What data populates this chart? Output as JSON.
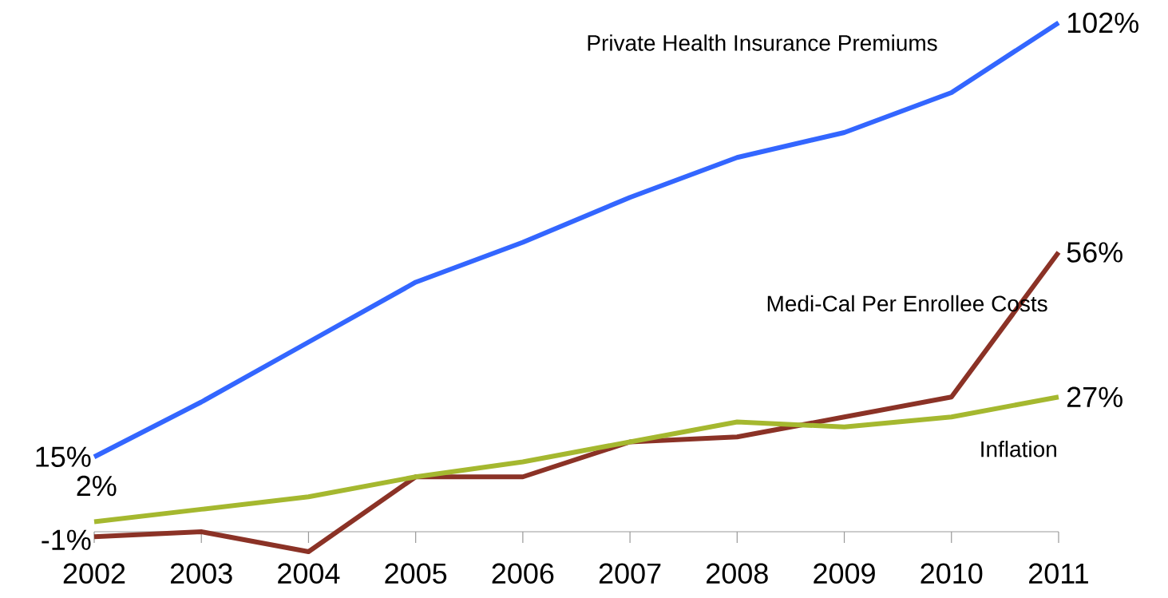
{
  "chart_data": {
    "type": "line",
    "categories": [
      "2002",
      "2003",
      "2004",
      "2005",
      "2006",
      "2007",
      "2008",
      "2009",
      "2010",
      "2011"
    ],
    "series": [
      {
        "name": "Private Health Insurance Premiums",
        "color": "#3366ff",
        "values": [
          15,
          26,
          38,
          50,
          58,
          67,
          75,
          80,
          88,
          102
        ],
        "value_labels": [
          "15%",
          null,
          null,
          null,
          null,
          null,
          null,
          null,
          null,
          "102%"
        ]
      },
      {
        "name": "Medi-Cal Per Enrollee Costs",
        "color": "#8b3226",
        "values": [
          -1,
          0,
          -4,
          11,
          11,
          18,
          19,
          23,
          27,
          56
        ],
        "value_labels": [
          "-1%",
          null,
          null,
          null,
          null,
          null,
          null,
          null,
          null,
          "56%"
        ]
      },
      {
        "name": "Inflation",
        "color": "#a5b82f",
        "values": [
          2,
          4.5,
          7,
          11,
          14,
          18,
          22,
          21,
          23,
          27
        ],
        "value_labels": [
          "2%",
          null,
          null,
          null,
          null,
          null,
          null,
          null,
          null,
          "27%"
        ]
      }
    ],
    "tick_labels": "x"
  }
}
